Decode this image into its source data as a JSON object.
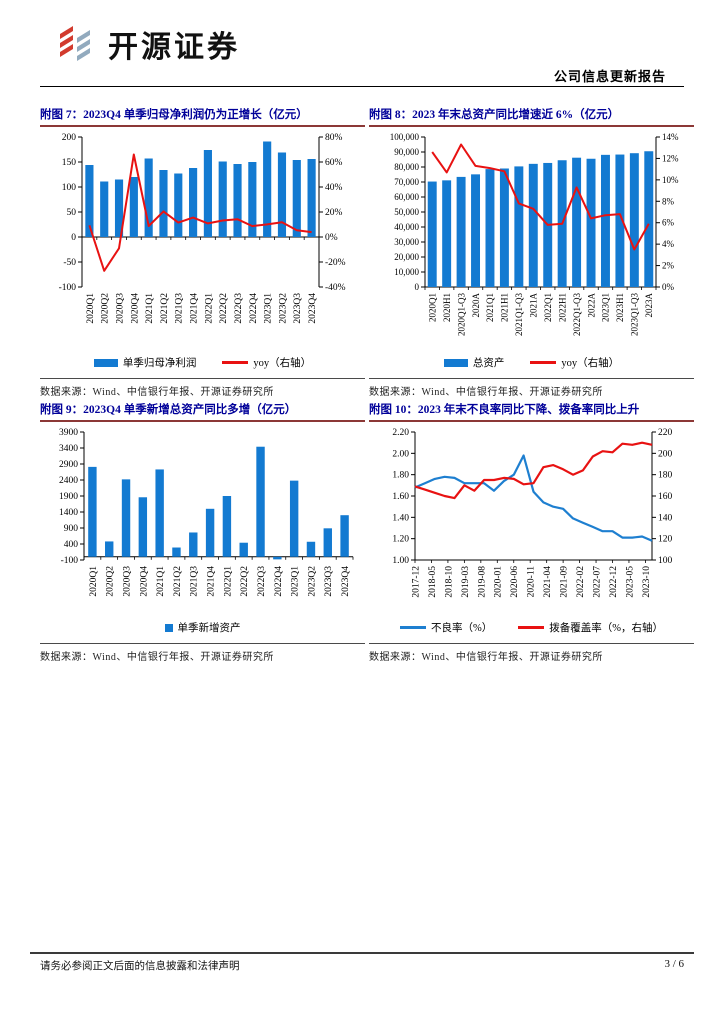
{
  "header": {
    "brand": "开源证券",
    "report_type": "公司信息更新报告",
    "logo_icon": "double-slash-stripes-icon"
  },
  "footer": {
    "disclaimer": "请务必参阅正文后面的信息披露和法律声明",
    "page": "3 / 6"
  },
  "colors": {
    "bar_blue": "#137AD1",
    "line_red": "#E81212",
    "line_blue": "#1E7FD0",
    "title_navy": "#000099",
    "title_underline": "#8C3836",
    "logo_red": "#D23B2E",
    "logo_slate": "#92AABE"
  },
  "charts": [
    {
      "title": "附图 7：2023Q4 单季归母净利润仍为正增长（亿元）",
      "source": "数据来源：Wind、中信银行年报、开源证券研究所",
      "chart_data": {
        "type": "bar+line",
        "categories": [
          "2020Q1",
          "2020Q2",
          "2020Q3",
          "2020Q4",
          "2021Q1",
          "2021Q2",
          "2021Q3",
          "2021Q4",
          "2022Q1",
          "2022Q2",
          "2022Q3",
          "2022Q4",
          "2023Q1",
          "2023Q2",
          "2023Q3",
          "2023Q4"
        ],
        "series": [
          {
            "name": "单季归母净利润",
            "kind": "bar",
            "axis": "left",
            "color_key": "bar_blue",
            "swatch": "bar",
            "values": [
              144,
              111,
              115,
              120,
              157,
              134,
              127,
              138,
              174,
              151,
              146,
              150,
              191,
              169,
              154,
              156
            ]
          },
          {
            "name": "yoy（右轴）",
            "kind": "line",
            "axis": "right",
            "color_key": "line_red",
            "swatch": "line",
            "values": [
              9.4,
              -27,
              -9,
              66,
              8.8,
              20.5,
              11.5,
              15.5,
              10.9,
              13.2,
              14.2,
              8.7,
              10.1,
              11.8,
              5.4,
              3.9
            ]
          }
        ],
        "left_axis": {
          "min": -100,
          "max": 200,
          "ticks": [
            "-100",
            "-50",
            "0",
            "50",
            "100",
            "150",
            "200"
          ]
        },
        "right_axis": {
          "min": -40,
          "max": 80,
          "ticks": [
            "-40%",
            "-20%",
            "0%",
            "20%",
            "40%",
            "60%",
            "80%"
          ]
        }
      }
    },
    {
      "title": "附图 8：2023 年末总资产同比增速近 6%（亿元）",
      "source": "数据来源：Wind、中信银行年报、开源证券研究所",
      "chart_data": {
        "type": "bar+line",
        "categories": [
          "2020Q1",
          "2020H1",
          "2020Q1-Q3",
          "2020A",
          "2021Q1",
          "2021H1",
          "2021Q1-Q3",
          "2021A",
          "2022Q1",
          "2022H1",
          "2022Q1-Q3",
          "2022A",
          "2023Q1",
          "2023H1",
          "2023Q1-Q3",
          "2023A"
        ],
        "series": [
          {
            "name": "总资产",
            "kind": "bar",
            "axis": "left",
            "color_key": "bar_blue",
            "swatch": "bar",
            "values": [
              70300,
              71100,
              73400,
              75100,
              78600,
              79000,
              80400,
              82100,
              82700,
              84500,
              86200,
              85500,
              88100,
              88300,
              89200,
              90500
            ]
          },
          {
            "name": "yoy（右轴）",
            "kind": "line",
            "axis": "right",
            "color_key": "line_red",
            "swatch": "line",
            "values": [
              12.6,
              10.7,
              13.3,
              11.3,
              11.1,
              10.8,
              7.8,
              7.3,
              5.8,
              5.9,
              9.3,
              6.4,
              6.7,
              6.8,
              3.5,
              5.9
            ]
          }
        ],
        "left_axis": {
          "min": 0,
          "max": 100000,
          "ticks": [
            "0",
            "10,000",
            "20,000",
            "30,000",
            "40,000",
            "50,000",
            "60,000",
            "70,000",
            "80,000",
            "90,000",
            "100,000"
          ]
        },
        "right_axis": {
          "min": 0,
          "max": 14,
          "ticks": [
            "0%",
            "2%",
            "4%",
            "6%",
            "8%",
            "10%",
            "12%",
            "14%"
          ]
        }
      }
    },
    {
      "title": "附图 9：2023Q4 单季新增总资产同比多增（亿元）",
      "source": "数据来源：Wind、中信银行年报、开源证券研究所",
      "chart_data": {
        "type": "bar",
        "categories": [
          "2020Q1",
          "2020Q2",
          "2020Q3",
          "2020Q4",
          "2021Q1",
          "2021Q2",
          "2021Q3",
          "2021Q4",
          "2022Q1",
          "2022Q2",
          "2022Q3",
          "2022Q4",
          "2023Q1",
          "2023Q2",
          "2023Q3",
          "2023Q4"
        ],
        "series": [
          {
            "name": "单季新增资产",
            "kind": "bar",
            "axis": "left",
            "color_key": "bar_blue",
            "swatch": "square",
            "values": [
              2810,
              480,
              2420,
              1860,
              2730,
              290,
              760,
              1500,
              1900,
              440,
              3440,
              -80,
              2380,
              470,
              890,
              1300
            ]
          }
        ],
        "left_axis": {
          "min": -100,
          "max": 3900,
          "ticks": [
            "-100",
            "400",
            "900",
            "1400",
            "1900",
            "2400",
            "2900",
            "3400",
            "3900"
          ]
        }
      }
    },
    {
      "title": "附图 10：2023 年末不良率同比下降、拨备率同比上升",
      "source": "数据来源：Wind、中信银行年报、开源证券研究所",
      "chart_data": {
        "type": "line",
        "x_tick_labels": [
          "2017-12",
          "2018-05",
          "2018-10",
          "2019-03",
          "2019-08",
          "2020-01",
          "2020-06",
          "2020-11",
          "2021-04",
          "2021-09",
          "2022-02",
          "2022-07",
          "2022-12",
          "2023-05",
          "2023-10"
        ],
        "x_months_span": 72,
        "x_tick_month_step": 5,
        "series": [
          {
            "name": "不良率（%）",
            "kind": "line",
            "axis": "left",
            "color_key": "line_blue",
            "swatch": "line",
            "month_step": 3,
            "values": [
              1.68,
              1.72,
              1.76,
              1.78,
              1.77,
              1.72,
              1.72,
              1.72,
              1.65,
              1.74,
              1.8,
              1.98,
              1.64,
              1.54,
              1.5,
              1.48,
              1.39,
              1.35,
              1.31,
              1.27,
              1.27,
              1.21,
              1.21,
              1.22,
              1.18
            ]
          },
          {
            "name": "拨备覆盖率（%，右轴）",
            "kind": "line",
            "axis": "right",
            "color_key": "line_red",
            "swatch": "line",
            "month_step": 3,
            "values": [
              169,
              166,
              163,
              160,
              158,
              170,
              165,
              175,
              175,
              177,
              176,
              171,
              172,
              187,
              189,
              185,
              180,
              184,
              197,
              202,
              201,
              209,
              208,
              210,
              208
            ]
          }
        ],
        "left_axis": {
          "min": 1.0,
          "max": 2.2,
          "ticks": [
            "1.00",
            "1.20",
            "1.40",
            "1.60",
            "1.80",
            "2.00",
            "2.20"
          ]
        },
        "right_axis": {
          "min": 100,
          "max": 220,
          "ticks": [
            "100",
            "120",
            "140",
            "160",
            "180",
            "200",
            "220"
          ]
        }
      }
    }
  ]
}
